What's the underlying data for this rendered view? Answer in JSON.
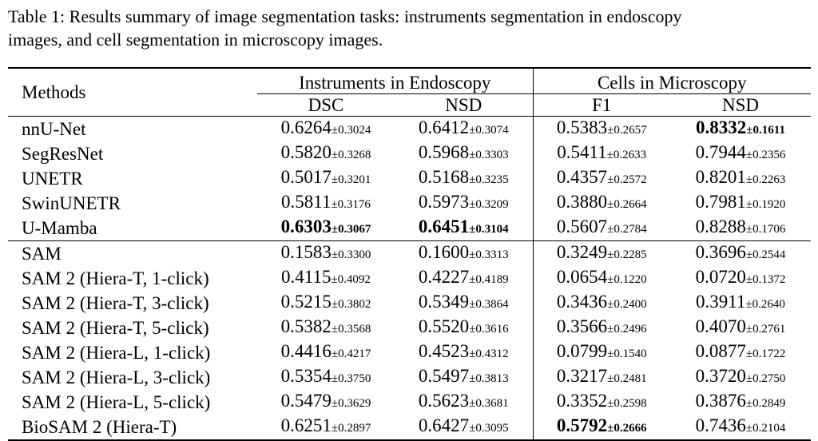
{
  "caption": {
    "line1": "Table 1: Results summary of image segmentation tasks: instruments segmentation in endoscopy",
    "line2": "images, and cell segmentation in microscopy images."
  },
  "table": {
    "methods_header": "Methods",
    "groups": [
      "Instruments in Endoscopy",
      "Cells in Microscopy"
    ],
    "subheaders": [
      "DSC",
      "NSD",
      "F1",
      "NSD"
    ],
    "rows": [
      {
        "method": "nnU-Net",
        "cells": [
          {
            "val": "0.6264",
            "std": "±0.3024",
            "bold": false
          },
          {
            "val": "0.6412",
            "std": "±0.3074",
            "bold": false
          },
          {
            "val": "0.5383",
            "std": "±0.2657",
            "bold": false
          },
          {
            "val": "0.8332",
            "std": "±0.1611",
            "bold": true
          }
        ]
      },
      {
        "method": "SegResNet",
        "cells": [
          {
            "val": "0.5820",
            "std": "±0.3268",
            "bold": false
          },
          {
            "val": "0.5968",
            "std": "±0.3303",
            "bold": false
          },
          {
            "val": "0.5411",
            "std": "±0.2633",
            "bold": false
          },
          {
            "val": "0.7944",
            "std": "±0.2356",
            "bold": false
          }
        ]
      },
      {
        "method": "UNETR",
        "cells": [
          {
            "val": "0.5017",
            "std": "±0.3201",
            "bold": false
          },
          {
            "val": "0.5168",
            "std": "±0.3235",
            "bold": false
          },
          {
            "val": "0.4357",
            "std": "±0.2572",
            "bold": false
          },
          {
            "val": "0.8201",
            "std": "±0.2263",
            "bold": false
          }
        ]
      },
      {
        "method": "SwinUNETR",
        "cells": [
          {
            "val": "0.5811",
            "std": "±0.3176",
            "bold": false
          },
          {
            "val": "0.5973",
            "std": "±0.3209",
            "bold": false
          },
          {
            "val": "0.3880",
            "std": "±0.2664",
            "bold": false
          },
          {
            "val": "0.7981",
            "std": "±0.1920",
            "bold": false
          }
        ]
      },
      {
        "method": "U-Mamba",
        "cells": [
          {
            "val": "0.6303",
            "std": "±0.3067",
            "bold": true
          },
          {
            "val": "0.6451",
            "std": "±0.3104",
            "bold": true
          },
          {
            "val": "0.5607",
            "std": "±0.2784",
            "bold": false
          },
          {
            "val": "0.8288",
            "std": "±0.1706",
            "bold": false
          }
        ]
      },
      {
        "method": "SAM",
        "cells": [
          {
            "val": "0.1583",
            "std": "±0.3300",
            "bold": false
          },
          {
            "val": "0.1600",
            "std": "±0.3313",
            "bold": false
          },
          {
            "val": "0.3249",
            "std": "±0.2285",
            "bold": false
          },
          {
            "val": "0.3696",
            "std": "±0.2544",
            "bold": false
          }
        ]
      },
      {
        "method": "SAM 2 (Hiera-T, 1-click)",
        "cells": [
          {
            "val": "0.4115",
            "std": "±0.4092",
            "bold": false
          },
          {
            "val": "0.4227",
            "std": "±0.4189",
            "bold": false
          },
          {
            "val": "0.0654",
            "std": "±0.1220",
            "bold": false
          },
          {
            "val": "0.0720",
            "std": "±0.1372",
            "bold": false
          }
        ]
      },
      {
        "method": "SAM 2 (Hiera-T, 3-click)",
        "cells": [
          {
            "val": "0.5215",
            "std": "±0.3802",
            "bold": false
          },
          {
            "val": "0.5349",
            "std": "±0.3864",
            "bold": false
          },
          {
            "val": "0.3436",
            "std": "±0.2400",
            "bold": false
          },
          {
            "val": "0.3911",
            "std": "±0.2640",
            "bold": false
          }
        ]
      },
      {
        "method": "SAM 2 (Hiera-T, 5-click)",
        "cells": [
          {
            "val": "0.5382",
            "std": "±0.3568",
            "bold": false
          },
          {
            "val": "0.5520",
            "std": "±0.3616",
            "bold": false
          },
          {
            "val": "0.3566",
            "std": "±0.2496",
            "bold": false
          },
          {
            "val": "0.4070",
            "std": "±0.2761",
            "bold": false
          }
        ]
      },
      {
        "method": "SAM 2 (Hiera-L, 1-click)",
        "cells": [
          {
            "val": "0.4416",
            "std": "±0.4217",
            "bold": false
          },
          {
            "val": "0.4523",
            "std": "±0.4312",
            "bold": false
          },
          {
            "val": "0.0799",
            "std": "±0.1540",
            "bold": false
          },
          {
            "val": "0.0877",
            "std": "±0.1722",
            "bold": false
          }
        ]
      },
      {
        "method": "SAM 2 (Hiera-L, 3-click)",
        "cells": [
          {
            "val": "0.5354",
            "std": "±0.3750",
            "bold": false
          },
          {
            "val": "0.5497",
            "std": "±0.3813",
            "bold": false
          },
          {
            "val": "0.3217",
            "std": "±0.2481",
            "bold": false
          },
          {
            "val": "0.3720",
            "std": "±0.2750",
            "bold": false
          }
        ]
      },
      {
        "method": "SAM 2 (Hiera-L, 5-click)",
        "cells": [
          {
            "val": "0.5479",
            "std": "±0.3629",
            "bold": false
          },
          {
            "val": "0.5623",
            "std": "±0.3681",
            "bold": false
          },
          {
            "val": "0.3352",
            "std": "±0.2598",
            "bold": false
          },
          {
            "val": "0.3876",
            "std": "±0.2849",
            "bold": false
          }
        ]
      },
      {
        "method": "BioSAM 2 (Hiera-T)",
        "cells": [
          {
            "val": "0.6251",
            "std": "±0.2897",
            "bold": false
          },
          {
            "val": "0.6427",
            "std": "±0.3095",
            "bold": false
          },
          {
            "val": "0.5792",
            "std": "±0.2666",
            "bold": true
          },
          {
            "val": "0.7436",
            "std": "±0.2104",
            "bold": false
          }
        ]
      }
    ]
  }
}
